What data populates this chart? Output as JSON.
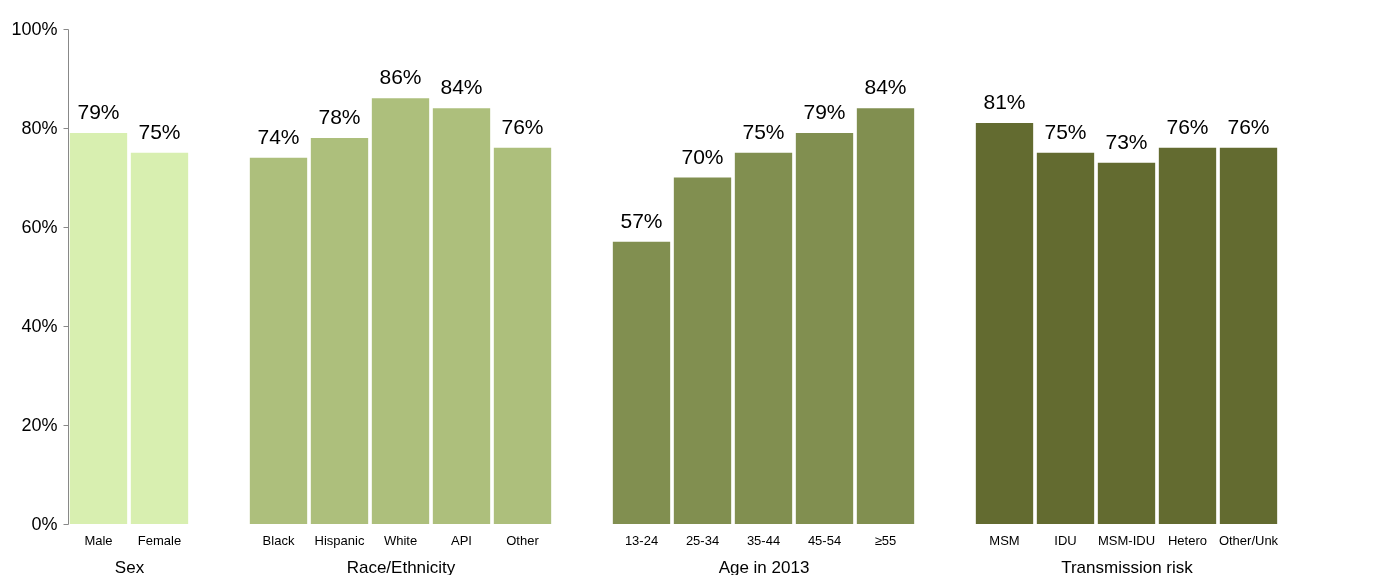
{
  "chart_data": [
    {
      "type": "bar",
      "xlabel": "Sex",
      "categories": [
        "Male",
        "Female"
      ],
      "values": [
        79,
        75
      ],
      "value_labels": [
        "79%",
        "75%"
      ],
      "color": "#d8efb0",
      "ylim": [
        0,
        100
      ],
      "yticks": [
        {
          "value": 0,
          "label": "0%"
        },
        {
          "value": 20,
          "label": "20%"
        },
        {
          "value": 40,
          "label": "40%"
        },
        {
          "value": 60,
          "label": "60%"
        },
        {
          "value": 80,
          "label": "80%"
        },
        {
          "value": 100,
          "label": "100%"
        }
      ],
      "grid": false
    },
    {
      "type": "bar",
      "xlabel": "Race/Ethnicity",
      "categories": [
        "Black",
        "Hispanic",
        "White",
        "API",
        "Other"
      ],
      "values": [
        74,
        78,
        86,
        84,
        76
      ],
      "value_labels": [
        "74%",
        "78%",
        "86%",
        "84%",
        "76%"
      ],
      "color": "#adbf7c",
      "ylim": [
        0,
        100
      ],
      "tick_labels": "x",
      "grid": false
    },
    {
      "type": "bar",
      "xlabel": "Age in 2013",
      "categories": [
        "13-24",
        "25-34",
        "35-44",
        "45-54",
        "≥55"
      ],
      "values": [
        57,
        70,
        75,
        79,
        84
      ],
      "value_labels": [
        "57%",
        "70%",
        "75%",
        "79%",
        "84%"
      ],
      "color": "#818f50",
      "ylim": [
        0,
        100
      ],
      "tick_labels": "x",
      "grid": false
    },
    {
      "type": "bar",
      "xlabel": "Transmission risk",
      "categories": [
        "MSM",
        "IDU",
        "MSM-IDU",
        "Hetero",
        "Other/Unk"
      ],
      "values": [
        81,
        75,
        73,
        76,
        76
      ],
      "value_labels": [
        "81%",
        "75%",
        "73%",
        "76%",
        "76%"
      ],
      "color": "#636b30",
      "ylim": [
        0,
        100
      ],
      "tick_labels": "x",
      "grid": false
    }
  ]
}
